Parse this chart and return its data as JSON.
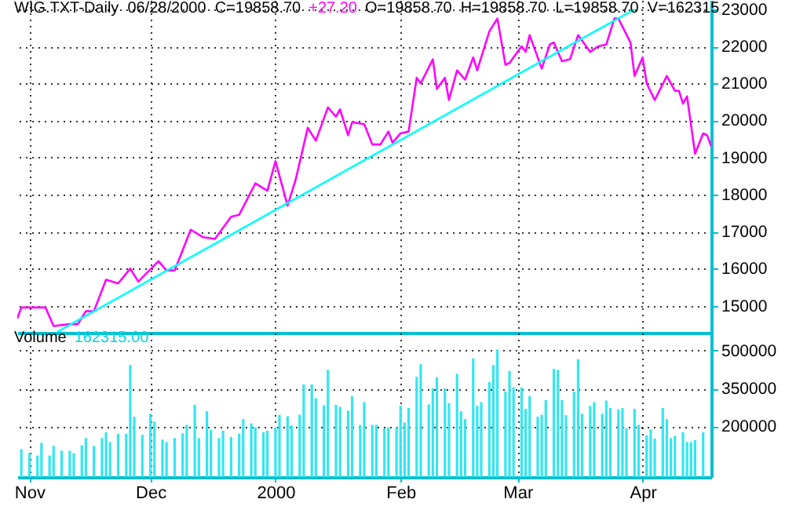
{
  "chart_data": [
    {
      "type": "line",
      "annotations": [
        "WIG.TXT-Daily  06/28/2000  C=19858.70",
        "+27.20",
        "O=19858.70  H=19858.70  L=19858.70  V=162315"
      ],
      "xlim": [
        "1999-10-29",
        "2000-04-18"
      ],
      "xticks": [
        {
          "value": "1999-11-01",
          "label": null
        },
        {
          "value": "1999-12-01",
          "label": null
        },
        {
          "value": "2000-01-01",
          "label": null
        },
        {
          "value": "2000-02-01",
          "label": null
        },
        {
          "value": "2000-03-01",
          "label": null
        },
        {
          "value": "2000-04-01",
          "label": null
        }
      ],
      "ylim": [
        14270,
        23250
      ],
      "yticks": [
        15000,
        16000,
        17000,
        18000,
        19000,
        20000,
        21000,
        22000,
        23000
      ],
      "grid": true,
      "tick_labels": "y",
      "series": [
        {
          "color": "#ff00ff",
          "x": [
            "1999-10-29",
            "1999-10-30",
            "1999-11-05",
            "1999-11-07",
            "1999-11-11",
            "1999-11-13",
            "1999-11-15",
            "1999-11-17",
            "1999-11-20",
            "1999-11-23",
            "1999-11-26",
            "1999-11-28",
            "1999-12-03",
            "1999-12-05",
            "1999-12-07",
            "1999-12-11",
            "1999-12-14",
            "1999-12-17",
            "1999-12-21",
            "1999-12-23",
            "1999-12-27",
            "1999-12-30",
            "2000-01-01",
            "2000-01-04",
            "2000-01-06",
            "2000-01-09",
            "2000-01-11",
            "2000-01-14",
            "2000-01-16",
            "2000-01-17",
            "2000-01-19",
            "2000-01-20",
            "2000-01-23",
            "2000-01-25",
            "2000-01-27",
            "2000-01-29",
            "2000-01-30",
            "2000-02-01",
            "2000-02-03",
            "2000-02-05",
            "2000-02-06",
            "2000-02-09",
            "2000-02-10",
            "2000-02-12",
            "2000-02-13",
            "2000-02-15",
            "2000-02-17",
            "2000-02-19",
            "2000-02-20",
            "2000-02-23",
            "2000-02-25",
            "2000-02-27",
            "2000-02-28",
            "2000-03-02",
            "2000-03-03",
            "2000-03-04",
            "2000-03-07",
            "2000-03-09",
            "2000-03-10",
            "2000-03-12",
            "2000-03-14",
            "2000-03-16",
            "2000-03-19",
            "2000-03-21",
            "2000-03-23",
            "2000-03-25",
            "2000-03-26",
            "2000-03-29",
            "2000-03-30",
            "2000-04-01",
            "2000-04-02",
            "2000-04-04",
            "2000-04-07",
            "2000-04-09",
            "2000-04-10",
            "2000-04-11",
            "2000-04-12",
            "2000-04-14",
            "2000-04-16",
            "2000-04-17",
            "2000-04-18"
          ],
          "values": [
            14650,
            14950,
            14950,
            14450,
            14500,
            14500,
            14850,
            14850,
            15700,
            15600,
            16000,
            15650,
            16200,
            15950,
            15950,
            17050,
            16850,
            16800,
            17400,
            17450,
            18300,
            18100,
            18900,
            17700,
            18400,
            19800,
            19450,
            20350,
            20100,
            20300,
            19600,
            19950,
            19900,
            19350,
            19350,
            19700,
            19400,
            19650,
            19700,
            21150,
            21000,
            21650,
            20850,
            21150,
            20550,
            21350,
            21100,
            21700,
            21350,
            22400,
            22750,
            21500,
            21550,
            22000,
            21850,
            22300,
            21400,
            22050,
            22100,
            21600,
            21650,
            22300,
            21850,
            22000,
            22050,
            22750,
            22750,
            22100,
            21200,
            21700,
            21000,
            20550,
            21200,
            20800,
            20800,
            20450,
            20650,
            19100,
            19650,
            19600,
            19300
          ]
        },
        {
          "color": "#00ffff",
          "x": [
            "1999-11-08",
            "2000-03-30"
          ],
          "values": [
            14300,
            23000
          ]
        }
      ]
    },
    {
      "type": "bar",
      "annotations": [
        "Volume",
        "162315.00"
      ],
      "xlim": [
        "1999-10-29",
        "2000-04-18"
      ],
      "xticks": [
        {
          "value": "1999-11-01",
          "label": "Nov"
        },
        {
          "value": "1999-12-01",
          "label": "Dec"
        },
        {
          "value": "2000-01-01",
          "label": "2000"
        },
        {
          "value": "2000-02-01",
          "label": "Feb"
        },
        {
          "value": "2000-03-01",
          "label": "Mar"
        },
        {
          "value": "2000-04-01",
          "label": "Apr"
        }
      ],
      "ylim": [
        0,
        570000
      ],
      "yticks": [
        200000,
        350000,
        500000
      ],
      "grid": true,
      "x": [
        "1999-10-30",
        "1999-11-01",
        "1999-11-03",
        "1999-11-04",
        "1999-11-06",
        "1999-11-07",
        "1999-11-09",
        "1999-11-11",
        "1999-11-12",
        "1999-11-14",
        "1999-11-15",
        "1999-11-17",
        "1999-11-19",
        "1999-11-20",
        "1999-11-21",
        "1999-11-23",
        "1999-11-25",
        "1999-11-26",
        "1999-11-27",
        "1999-11-29",
        "1999-12-01",
        "1999-12-02",
        "1999-12-04",
        "1999-12-05",
        "1999-12-07",
        "1999-12-09",
        "1999-12-10",
        "1999-12-12",
        "1999-12-13",
        "1999-12-15",
        "1999-12-16",
        "1999-12-18",
        "1999-12-19",
        "1999-12-21",
        "1999-12-23",
        "1999-12-24",
        "1999-12-26",
        "1999-12-27",
        "1999-12-29",
        "1999-12-30",
        "2000-01-01",
        "2000-01-02",
        "2000-01-04",
        "2000-01-05",
        "2000-01-07",
        "2000-01-08",
        "2000-01-10",
        "2000-01-11",
        "2000-01-13",
        "2000-01-14",
        "2000-01-16",
        "2000-01-17",
        "2000-01-19",
        "2000-01-20",
        "2000-01-22",
        "2000-01-23",
        "2000-01-25",
        "2000-01-26",
        "2000-01-28",
        "2000-01-29",
        "2000-01-31",
        "2000-02-01",
        "2000-02-02",
        "2000-02-03",
        "2000-02-05",
        "2000-02-06",
        "2000-02-08",
        "2000-02-09",
        "2000-02-10",
        "2000-02-12",
        "2000-02-13",
        "2000-02-15",
        "2000-02-16",
        "2000-02-17",
        "2000-02-19",
        "2000-02-20",
        "2000-02-21",
        "2000-02-23",
        "2000-02-24",
        "2000-02-25",
        "2000-02-27",
        "2000-02-28",
        "2000-02-29",
        "2000-03-02",
        "2000-03-03",
        "2000-03-04",
        "2000-03-06",
        "2000-03-07",
        "2000-03-08",
        "2000-03-10",
        "2000-03-11",
        "2000-03-12",
        "2000-03-13",
        "2000-03-15",
        "2000-03-16",
        "2000-03-17",
        "2000-03-19",
        "2000-03-20",
        "2000-03-22",
        "2000-03-23",
        "2000-03-24",
        "2000-03-26",
        "2000-03-27",
        "2000-03-28",
        "2000-03-30",
        "2000-03-31",
        "2000-04-02",
        "2000-04-03",
        "2000-04-04",
        "2000-04-06",
        "2000-04-07",
        "2000-04-08",
        "2000-04-09",
        "2000-04-11",
        "2000-04-12",
        "2000-04-13",
        "2000-04-14",
        "2000-04-16"
      ],
      "series": [
        {
          "color": "#33e6f2",
          "values": [
            110000,
            94000,
            85000,
            135000,
            85000,
            123000,
            104000,
            104000,
            94000,
            125000,
            154000,
            123000,
            154000,
            177000,
            138000,
            171000,
            171000,
            442000,
            238000,
            167000,
            250000,
            219000,
            148000,
            138000,
            154000,
            173000,
            206000,
            285000,
            154000,
            260000,
            187000,
            154000,
            183000,
            158000,
            171000,
            229000,
            212000,
            196000,
            177000,
            183000,
            196000,
            246000,
            240000,
            204000,
            246000,
            366000,
            366000,
            311000,
            283000,
            423000,
            285000,
            277000,
            262000,
            319000,
            206000,
            296000,
            206000,
            206000,
            192000,
            196000,
            196000,
            281000,
            215000,
            273000,
            396000,
            446000,
            287000,
            350000,
            394000,
            350000,
            292000,
            408000,
            260000,
            229000,
            469000,
            281000,
            296000,
            375000,
            442000,
            504000,
            338000,
            419000,
            354000,
            354000,
            269000,
            319000,
            238000,
            246000,
            304000,
            427000,
            423000,
            304000,
            244000,
            337000,
            465000,
            250000,
            281000,
            296000,
            250000,
            302000,
            273000,
            267000,
            273000,
            192000,
            269000,
            206000,
            165000,
            188000,
            152000,
            273000,
            229000,
            154000,
            163000,
            177000,
            138000,
            138000,
            146000,
            177000
          ]
        }
      ]
    }
  ]
}
